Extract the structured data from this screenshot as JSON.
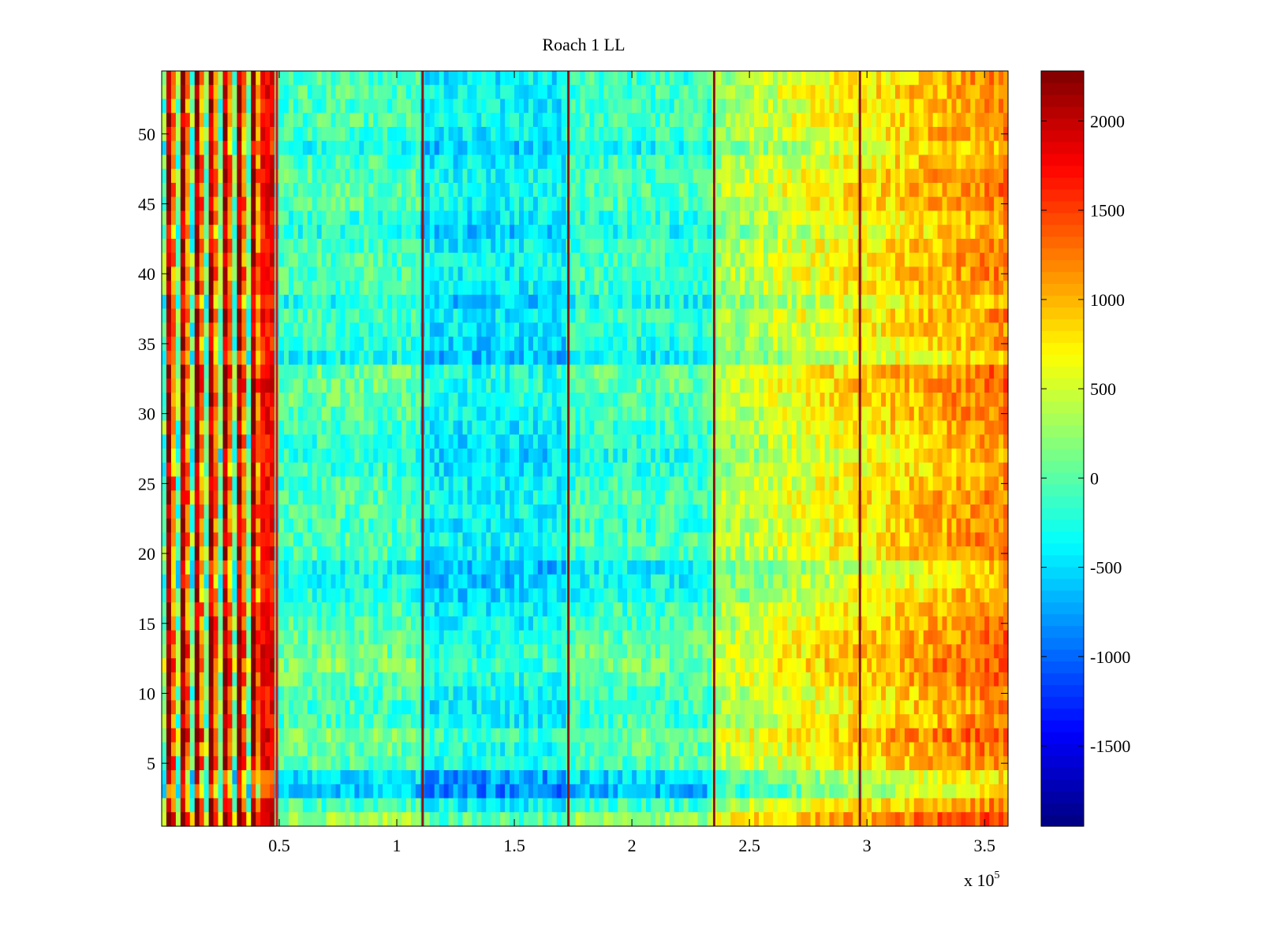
{
  "chart_data": {
    "type": "heatmap",
    "title": "Roach 1 LL",
    "xlabel": "",
    "ylabel": "",
    "x_multiplier_label": "x 10",
    "x_multiplier_exponent": "5",
    "xlim": [
      0.0,
      3.6
    ],
    "ylim": [
      0.5,
      54.5
    ],
    "x_ticks": [
      0.5,
      1,
      1.5,
      2,
      2.5,
      3,
      3.5
    ],
    "x_tick_labels": [
      "0.5",
      "1",
      "1.5",
      "2",
      "2.5",
      "3",
      "3.5"
    ],
    "y_ticks": [
      5,
      10,
      15,
      20,
      25,
      30,
      35,
      40,
      45,
      50
    ],
    "y_tick_labels": [
      "5",
      "10",
      "15",
      "20",
      "25",
      "30",
      "35",
      "40",
      "45",
      "50"
    ],
    "n_rows": 54,
    "colorbar": {
      "colormap": "jet",
      "clim": [
        -1950,
        2280
      ],
      "ticks": [
        -1500,
        -1000,
        -500,
        0,
        500,
        1000,
        1500,
        2000
      ],
      "tick_labels": [
        "-1500",
        "-1000",
        "-500",
        "0",
        "500",
        "1000",
        "1500",
        "2000"
      ]
    },
    "segment_boundaries": [
      0.49,
      1.11,
      1.73,
      2.35,
      2.97
    ],
    "segments": [
      {
        "x_range": [
          0.0,
          0.49
        ],
        "mean_value": 900,
        "pattern": "alternating stripes, very high variance"
      },
      {
        "x_range": [
          0.49,
          1.11
        ],
        "mean_value": -150,
        "pattern": "cyan-green"
      },
      {
        "x_range": [
          1.11,
          1.73
        ],
        "mean_value": -450,
        "pattern": "cyan-blue"
      },
      {
        "x_range": [
          1.73,
          2.35
        ],
        "mean_value": -200,
        "pattern": "cyan-green"
      },
      {
        "x_range": [
          2.35,
          2.97
        ],
        "mean_value": 450,
        "pattern": "green-yellow, rising"
      },
      {
        "x_range": [
          2.97,
          3.6
        ],
        "mean_value": 900,
        "pattern": "yellow-red, rising"
      }
    ],
    "row_offsets": [
      700,
      150,
      -700,
      -500,
      250,
      300,
      500,
      150,
      100,
      150,
      350,
      500,
      400,
      300,
      200,
      100,
      -100,
      -200,
      -300,
      100,
      200,
      100,
      150,
      200,
      100,
      0,
      -100,
      0,
      100,
      200,
      300,
      350,
      350,
      -300,
      -100,
      0,
      100,
      -200,
      100,
      150,
      150,
      100,
      -150,
      0,
      200,
      250,
      200,
      100,
      -200,
      100,
      150,
      100,
      150,
      100
    ]
  }
}
